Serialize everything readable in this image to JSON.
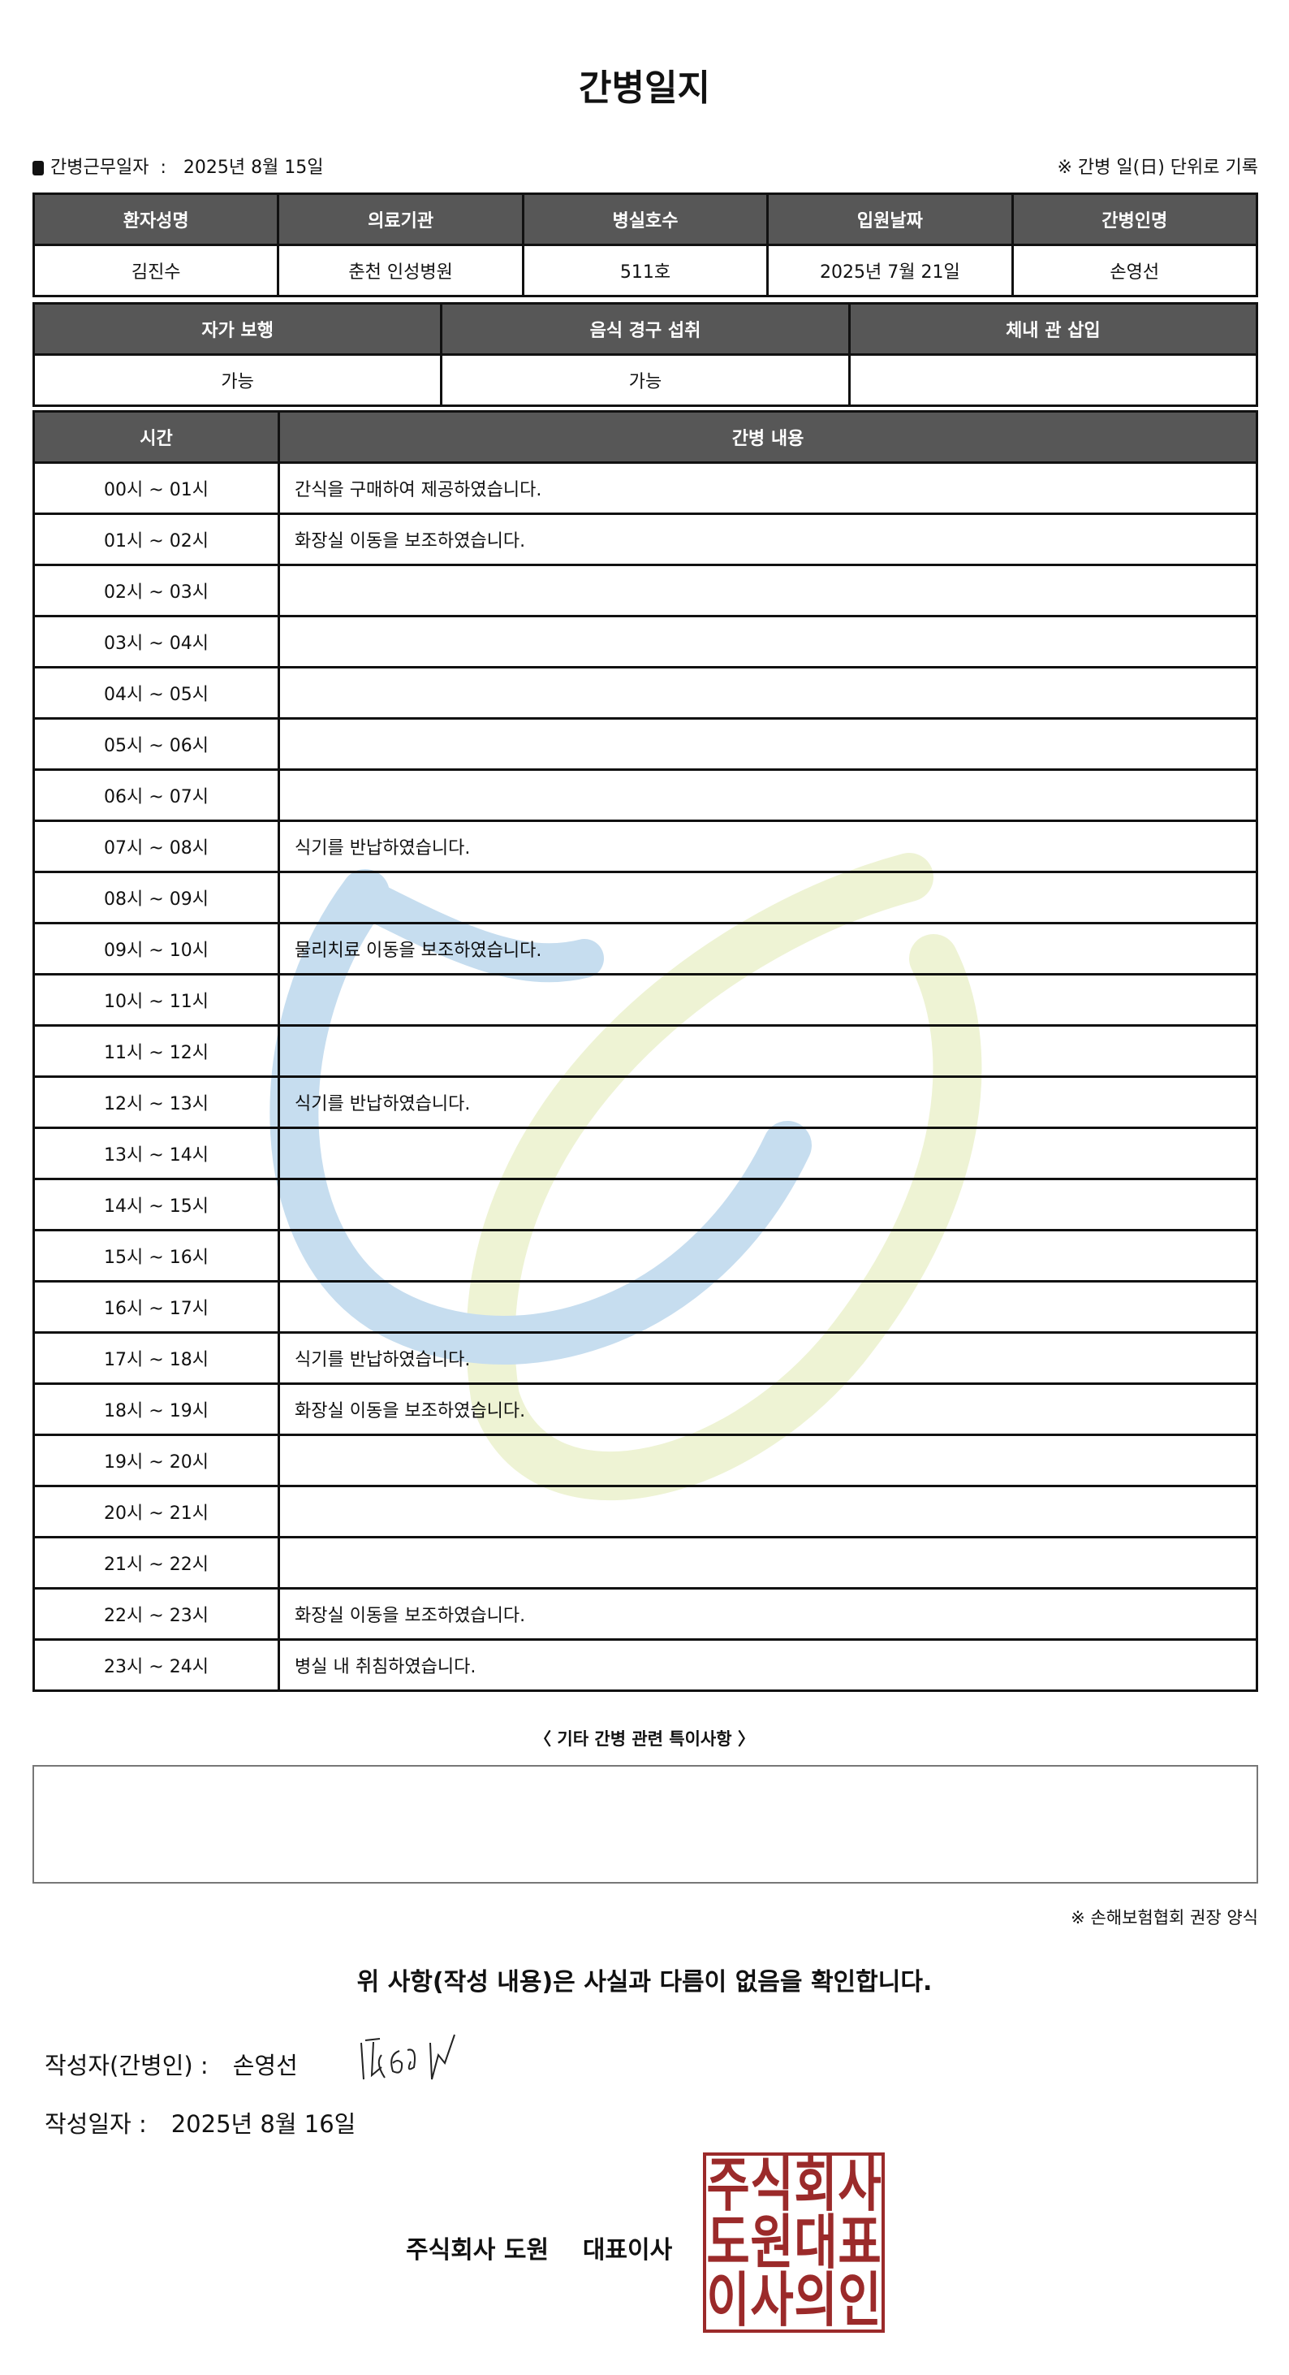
{
  "title": "간병일지",
  "work_date_label": "간병근무일자",
  "work_date": "2025년 8월 15일",
  "daily_note": "※ 간병 일(日) 단위로 기록",
  "patient_table": {
    "headers": [
      "환자성명",
      "의료기관",
      "병실호수",
      "입원날짜",
      "간병인명"
    ],
    "values": [
      "김진수",
      "춘천 인성병원",
      "511호",
      "2025년 7월 21일",
      "손영선"
    ]
  },
  "status_table": {
    "headers": [
      "자가 보행",
      "음식 경구 섭취",
      "체내 관 삽입"
    ],
    "values": [
      "가능",
      "가능",
      ""
    ]
  },
  "log_table": {
    "headers": [
      "시간",
      "간병 내용"
    ],
    "rows": [
      {
        "time": "00시 ~ 01시",
        "content": "간식을 구매하여 제공하였습니다."
      },
      {
        "time": "01시 ~ 02시",
        "content": "화장실 이동을 보조하였습니다."
      },
      {
        "time": "02시 ~ 03시",
        "content": ""
      },
      {
        "time": "03시 ~ 04시",
        "content": ""
      },
      {
        "time": "04시 ~ 05시",
        "content": ""
      },
      {
        "time": "05시 ~ 06시",
        "content": ""
      },
      {
        "time": "06시 ~ 07시",
        "content": ""
      },
      {
        "time": "07시 ~ 08시",
        "content": "식기를 반납하였습니다."
      },
      {
        "time": "08시 ~ 09시",
        "content": ""
      },
      {
        "time": "09시 ~ 10시",
        "content": "물리치료 이동을 보조하였습니다."
      },
      {
        "time": "10시 ~ 11시",
        "content": ""
      },
      {
        "time": "11시 ~ 12시",
        "content": ""
      },
      {
        "time": "12시 ~ 13시",
        "content": "식기를 반납하였습니다."
      },
      {
        "time": "13시 ~ 14시",
        "content": ""
      },
      {
        "time": "14시 ~ 15시",
        "content": ""
      },
      {
        "time": "15시 ~ 16시",
        "content": ""
      },
      {
        "time": "16시 ~ 17시",
        "content": ""
      },
      {
        "time": "17시 ~ 18시",
        "content": "식기를 반납하였습니다."
      },
      {
        "time": "18시 ~ 19시",
        "content": "화장실 이동을 보조하였습니다."
      },
      {
        "time": "19시 ~ 20시",
        "content": ""
      },
      {
        "time": "20시 ~ 21시",
        "content": ""
      },
      {
        "time": "21시 ~ 22시",
        "content": ""
      },
      {
        "time": "22시 ~ 23시",
        "content": "화장실 이동을 보조하였습니다."
      },
      {
        "time": "23시 ~ 24시",
        "content": "병실 내 취침하였습니다."
      }
    ]
  },
  "notes": {
    "title": "〈 기타 간병 관련 특이사항 〉",
    "content": ""
  },
  "footnote": "※ 손해보험협회 권장 양식",
  "confirmation": "위 사항(작성 내용)은 사실과 다름이 없음을 확인합니다.",
  "author_label": "작성자(간병인) :",
  "author_name": "손영선",
  "written_date_label": "작성일자 :",
  "written_date": "2025년 8월 16일",
  "company": "주식회사 도원",
  "ceo_label": "대표이사",
  "seal_text": "주식회사도원대표이사의인",
  "colors": {
    "header_bg": "#575757",
    "seal": "#9b2a2a",
    "watermark_blue": "#c6ddef",
    "watermark_green": "#eef3d4"
  }
}
